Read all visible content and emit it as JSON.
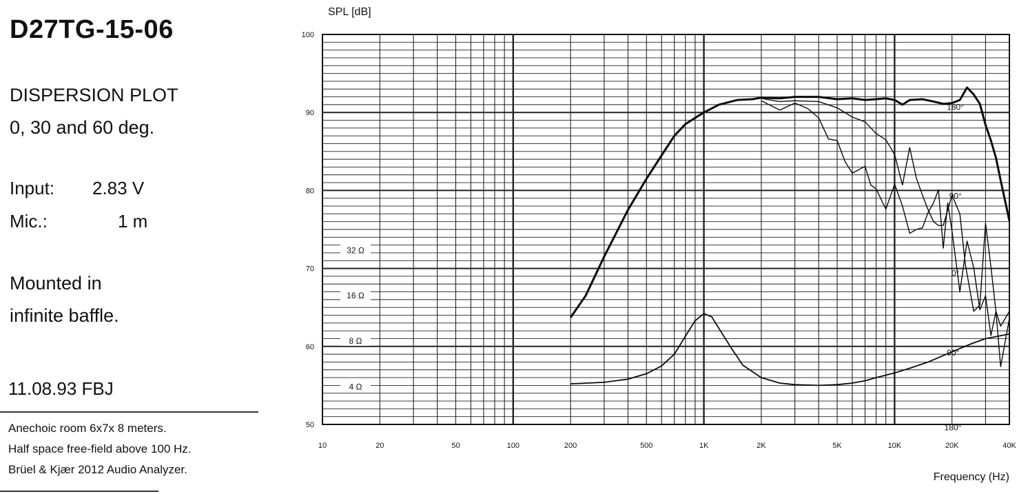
{
  "header": {
    "model": "D27TG-15-06",
    "plot_title": "DISPERSION PLOT",
    "angles": "0, 30 and 60 deg."
  },
  "specs": {
    "input_label": "Input:",
    "input_value": "2.83 V",
    "mic_label": "Mic.:",
    "mic_value": "1 m",
    "mount_line1": "Mounted in",
    "mount_line2": "infinite baffle."
  },
  "date": "11.08.93 FBJ",
  "notes": [
    "Anechoic room 6x7x 8 meters.",
    "Half space free-field above 100 Hz.",
    "Brüel & Kjær 2012 Audio Analyzer."
  ],
  "chart_data": {
    "type": "line",
    "xlabel": "Frequency (Hz)",
    "ylabel": "SPL [dB]",
    "x_scale": "log",
    "xlim": [
      10,
      40000
    ],
    "ylim": [
      50,
      100
    ],
    "grid": true,
    "x_tick_labels": [
      "10",
      "20",
      "50",
      "100",
      "200",
      "500",
      "1K",
      "2K",
      "5K",
      "10K",
      "20K",
      "40K"
    ],
    "x_tick_values": [
      10,
      20,
      50,
      100,
      200,
      500,
      1000,
      2000,
      5000,
      10000,
      20000,
      40000
    ],
    "y_tick_labels": [
      "50",
      "60",
      "70",
      "80",
      "90",
      "100"
    ],
    "y_tick_values": [
      50,
      60,
      70,
      80,
      90,
      100
    ],
    "impedance_labels": [
      {
        "text": "32 Ω",
        "spl": 72.3
      },
      {
        "text": "16 Ω",
        "spl": 66.5
      },
      {
        "text": "8 Ω",
        "spl": 60.7
      },
      {
        "text": "4 Ω",
        "spl": 54.8
      }
    ],
    "annotations": [
      {
        "text": "180°",
        "x": 17000,
        "y": 90.7
      },
      {
        "text": "90°",
        "x": 17500,
        "y": 79.3
      },
      {
        "text": "0°",
        "x": 18000,
        "y": 69.4
      },
      {
        "text": "90°",
        "x": 17000,
        "y": 59.2
      },
      {
        "text": "180°",
        "x": 16500,
        "y": 49.6
      }
    ],
    "series": [
      {
        "name": "0°",
        "x": [
          200,
          240,
          300,
          400,
          500,
          600,
          700,
          800,
          900,
          1000,
          1200,
          1500,
          1800,
          2000,
          2500,
          3000,
          4000,
          5000,
          6000,
          7000,
          8000,
          9000,
          10000,
          11000,
          12000,
          14000,
          16000,
          18000,
          20000,
          22000,
          24000,
          26000,
          28000,
          30000,
          32000,
          34000,
          36000,
          40000
        ],
        "y": [
          63.7,
          66.5,
          71.5,
          77.5,
          81.5,
          84.5,
          87,
          88.5,
          89.3,
          90,
          91,
          91.6,
          91.7,
          91.9,
          91.8,
          92,
          92,
          91.7,
          91.8,
          91.6,
          91.7,
          91.8,
          91.6,
          91,
          91.6,
          91.7,
          91.4,
          91.1,
          91.2,
          91.6,
          93.2,
          92.3,
          91.1,
          88.4,
          86.4,
          84.2,
          81.3,
          76.1
        ]
      },
      {
        "name": "30°",
        "x": [
          2000,
          2500,
          3000,
          4000,
          5000,
          6000,
          7000,
          8000,
          9000,
          10000,
          11000,
          12000,
          13000,
          14000,
          15000,
          16000,
          17000,
          18000,
          20000,
          22000,
          23500,
          26000,
          28000,
          30000,
          32000,
          34000,
          36000,
          40000
        ],
        "y": [
          91.8,
          91.4,
          91.5,
          91.4,
          90.6,
          89.4,
          88.8,
          87.3,
          86.5,
          84.6,
          80.7,
          85.5,
          81.6,
          79.4,
          77.5,
          76,
          75.5,
          75.5,
          79.4,
          77,
          70.5,
          64.5,
          65.3,
          75.8,
          70.2,
          64.5,
          62.6,
          64.5
        ]
      },
      {
        "name": "60°",
        "x": [
          2000,
          2500,
          3000,
          3500,
          4000,
          4500,
          5000,
          5500,
          6000,
          7000,
          7500,
          8000,
          9000,
          10000,
          11000,
          12000,
          13000,
          14000,
          15000,
          16000,
          17000,
          18000,
          19000,
          20000,
          22000,
          24000,
          26000,
          28000,
          30000,
          32000,
          34000,
          36000,
          40000
        ],
        "y": [
          91.5,
          90.3,
          91.2,
          90.5,
          89.3,
          86.6,
          86.4,
          83.7,
          82.2,
          83.1,
          80.7,
          80.2,
          77.6,
          80.8,
          78,
          74.5,
          75,
          75.2,
          77.2,
          78.4,
          80.1,
          72.6,
          78.4,
          74.8,
          67,
          73.5,
          70.1,
          64.7,
          66.5,
          61.4,
          64.5,
          57.4,
          63.6
        ]
      },
      {
        "name": "Impedance",
        "x": [
          200,
          300,
          400,
          500,
          600,
          700,
          800,
          900,
          1000,
          1100,
          1200,
          1400,
          1600,
          2000,
          2500,
          3000,
          4000,
          5000,
          6000,
          7000,
          8000,
          10000,
          12000,
          15000,
          20000,
          25000,
          30000,
          40000
        ],
        "y": [
          55.2,
          55.4,
          55.8,
          56.5,
          57.5,
          59,
          61.3,
          63.3,
          64.2,
          63.8,
          62.3,
          59.7,
          57.6,
          56,
          55.3,
          55.1,
          55,
          55.1,
          55.3,
          55.6,
          56,
          56.6,
          57.2,
          58,
          59.3,
          60.3,
          61,
          61.6
        ]
      }
    ]
  }
}
